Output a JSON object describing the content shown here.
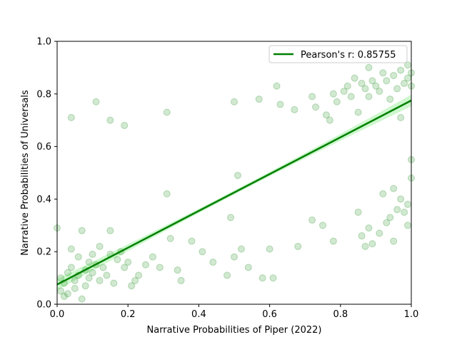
{
  "chart_data": {
    "type": "scatter",
    "xlabel": "Narrative Probabilities of Piper (2022)",
    "ylabel": "Narrative Probabilities of Universals",
    "xlim": [
      0.0,
      1.0
    ],
    "ylim": [
      0.0,
      1.0
    ],
    "xticks": [
      "0.0",
      "0.2",
      "0.4",
      "0.6",
      "0.8",
      "1.0"
    ],
    "yticks": [
      "0.0",
      "0.2",
      "0.4",
      "0.6",
      "0.8",
      "1.0"
    ],
    "grid": false,
    "legend_position": "top-right",
    "colors": {
      "points": "#008000",
      "line": "#008000",
      "band": "#90ee90"
    },
    "regression": {
      "label": "Pearson's r: 0.85755",
      "intercept": 0.075,
      "slope": 0.7,
      "ci_halfwidth_ends": 0.022,
      "ci_halfwidth_center": 0.008
    },
    "points": [
      [
        0.0,
        0.29
      ],
      [
        0.01,
        0.1
      ],
      [
        0.01,
        0.05
      ],
      [
        0.02,
        0.03
      ],
      [
        0.02,
        0.08
      ],
      [
        0.03,
        0.12
      ],
      [
        0.03,
        0.04
      ],
      [
        0.04,
        0.21
      ],
      [
        0.04,
        0.14
      ],
      [
        0.05,
        0.09
      ],
      [
        0.05,
        0.06
      ],
      [
        0.06,
        0.18
      ],
      [
        0.06,
        0.11
      ],
      [
        0.07,
        0.28
      ],
      [
        0.07,
        0.02
      ],
      [
        0.08,
        0.13
      ],
      [
        0.08,
        0.07
      ],
      [
        0.09,
        0.16
      ],
      [
        0.09,
        0.1
      ],
      [
        0.1,
        0.19
      ],
      [
        0.1,
        0.12
      ],
      [
        0.11,
        0.15
      ],
      [
        0.12,
        0.09
      ],
      [
        0.12,
        0.22
      ],
      [
        0.13,
        0.14
      ],
      [
        0.14,
        0.11
      ],
      [
        0.15,
        0.28
      ],
      [
        0.15,
        0.19
      ],
      [
        0.16,
        0.08
      ],
      [
        0.17,
        0.17
      ],
      [
        0.18,
        0.2
      ],
      [
        0.19,
        0.14
      ],
      [
        0.2,
        0.16
      ],
      [
        0.21,
        0.07
      ],
      [
        0.22,
        0.09
      ],
      [
        0.23,
        0.11
      ],
      [
        0.25,
        0.15
      ],
      [
        0.27,
        0.18
      ],
      [
        0.29,
        0.14
      ],
      [
        0.31,
        0.42
      ],
      [
        0.32,
        0.25
      ],
      [
        0.34,
        0.13
      ],
      [
        0.35,
        0.09
      ],
      [
        0.38,
        0.24
      ],
      [
        0.41,
        0.2
      ],
      [
        0.44,
        0.16
      ],
      [
        0.48,
        0.11
      ],
      [
        0.49,
        0.33
      ],
      [
        0.5,
        0.18
      ],
      [
        0.51,
        0.49
      ],
      [
        0.52,
        0.21
      ],
      [
        0.54,
        0.14
      ],
      [
        0.58,
        0.1
      ],
      [
        0.6,
        0.21
      ],
      [
        0.61,
        0.1
      ],
      [
        0.68,
        0.22
      ],
      [
        0.04,
        0.71
      ],
      [
        0.11,
        0.77
      ],
      [
        0.15,
        0.7
      ],
      [
        0.19,
        0.68
      ],
      [
        0.31,
        0.73
      ],
      [
        0.5,
        0.77
      ],
      [
        0.57,
        0.78
      ],
      [
        0.62,
        0.83
      ],
      [
        0.63,
        0.76
      ],
      [
        0.67,
        0.74
      ],
      [
        0.72,
        0.79
      ],
      [
        0.73,
        0.75
      ],
      [
        0.76,
        0.72
      ],
      [
        0.77,
        0.7
      ],
      [
        0.78,
        0.8
      ],
      [
        0.79,
        0.77
      ],
      [
        0.81,
        0.81
      ],
      [
        0.82,
        0.83
      ],
      [
        0.83,
        0.79
      ],
      [
        0.84,
        0.86
      ],
      [
        0.85,
        0.73
      ],
      [
        0.86,
        0.84
      ],
      [
        0.87,
        0.82
      ],
      [
        0.88,
        0.9
      ],
      [
        0.88,
        0.79
      ],
      [
        0.89,
        0.85
      ],
      [
        0.9,
        0.83
      ],
      [
        0.91,
        0.81
      ],
      [
        0.92,
        0.88
      ],
      [
        0.93,
        0.85
      ],
      [
        0.94,
        0.78
      ],
      [
        0.95,
        0.87
      ],
      [
        0.96,
        0.82
      ],
      [
        0.97,
        0.89
      ],
      [
        0.98,
        0.84
      ],
      [
        0.99,
        0.91
      ],
      [
        0.99,
        0.86
      ],
      [
        1.0,
        0.88
      ],
      [
        1.0,
        0.83
      ],
      [
        0.97,
        0.71
      ],
      [
        0.72,
        0.32
      ],
      [
        0.75,
        0.3
      ],
      [
        0.78,
        0.24
      ],
      [
        0.85,
        0.35
      ],
      [
        0.86,
        0.26
      ],
      [
        0.87,
        0.22
      ],
      [
        0.88,
        0.29
      ],
      [
        0.89,
        0.23
      ],
      [
        0.91,
        0.27
      ],
      [
        0.92,
        0.42
      ],
      [
        0.93,
        0.31
      ],
      [
        0.94,
        0.33
      ],
      [
        0.95,
        0.44
      ],
      [
        0.95,
        0.24
      ],
      [
        0.96,
        0.36
      ],
      [
        0.97,
        0.4
      ],
      [
        0.98,
        0.35
      ],
      [
        0.99,
        0.38
      ],
      [
        1.0,
        0.55
      ],
      [
        1.0,
        0.48
      ],
      [
        0.99,
        0.3
      ]
    ]
  }
}
